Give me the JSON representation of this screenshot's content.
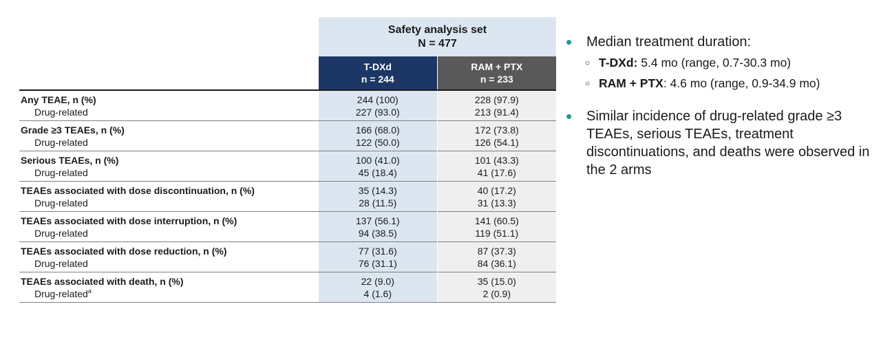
{
  "table": {
    "header": {
      "set_label": "Safety analysis set",
      "set_n": "N = 477",
      "arms": [
        {
          "name": "T-DXd",
          "n": "n = 244"
        },
        {
          "name": "RAM + PTX",
          "n": "n = 233"
        }
      ]
    },
    "rows": [
      {
        "label": "Any TEAE, n (%)",
        "sub": "Drug-related",
        "sub_sup": "",
        "a1": "244 (100)",
        "a2": "227 (93.0)",
        "b1": "228 (97.9)",
        "b2": "213 (91.4)"
      },
      {
        "label": "Grade ≥3 TEAEs, n (%)",
        "sub": "Drug-related",
        "sub_sup": "",
        "a1": "166 (68.0)",
        "a2": "122 (50.0)",
        "b1": "172 (73.8)",
        "b2": "126 (54.1)"
      },
      {
        "label": "Serious TEAEs, n (%)",
        "sub": "Drug-related",
        "sub_sup": "",
        "a1": "100 (41.0)",
        "a2": "45 (18.4)",
        "b1": "101 (43.3)",
        "b2": "41 (17.6)"
      },
      {
        "label": "TEAEs associated with dose discontinuation, n (%)",
        "sub": "Drug-related",
        "sub_sup": "",
        "a1": "35 (14.3)",
        "a2": "28 (11.5)",
        "b1": "40 (17.2)",
        "b2": "31 (13.3)"
      },
      {
        "label": "TEAEs associated with dose interruption, n (%)",
        "sub": "Drug-related",
        "sub_sup": "",
        "a1": "137 (56.1)",
        "a2": "94 (38.5)",
        "b1": "141 (60.5)",
        "b2": "119 (51.1)"
      },
      {
        "label": "TEAEs associated with dose reduction, n (%)",
        "sub": "Drug-related",
        "sub_sup": "",
        "a1": "77 (31.6)",
        "a2": "76 (31.1)",
        "b1": "87 (37.3)",
        "b2": "84 (36.1)"
      },
      {
        "label": "TEAEs associated with death, n (%)",
        "sub": "Drug-related",
        "sub_sup": "a",
        "a1": "22 (9.0)",
        "a2": "4 (1.6)",
        "b1": "35 (15.0)",
        "b2": "2 (0.9)"
      }
    ]
  },
  "bullets": {
    "b1": "Median treatment duration:",
    "s1_bold": "T-DXd:",
    "s1_rest": " 5.4 mo (range, 0.7-30.3 mo)",
    "s2_bold": "RAM + PTX",
    "s2_rest": ": 4.6 mo (range, 0.9-34.9 mo)",
    "b2": "Similar incidence of drug-related grade ≥3 TEAEs, serious TEAEs, treatment discontinuations, and deaths were observed in the 2 arms"
  },
  "colors": {
    "arm_a_header": "#1c3765",
    "arm_b_header": "#595959",
    "arm_a_fill": "#dce6f1",
    "arm_b_fill": "#efefef",
    "bullet": "#1e9b8a"
  }
}
